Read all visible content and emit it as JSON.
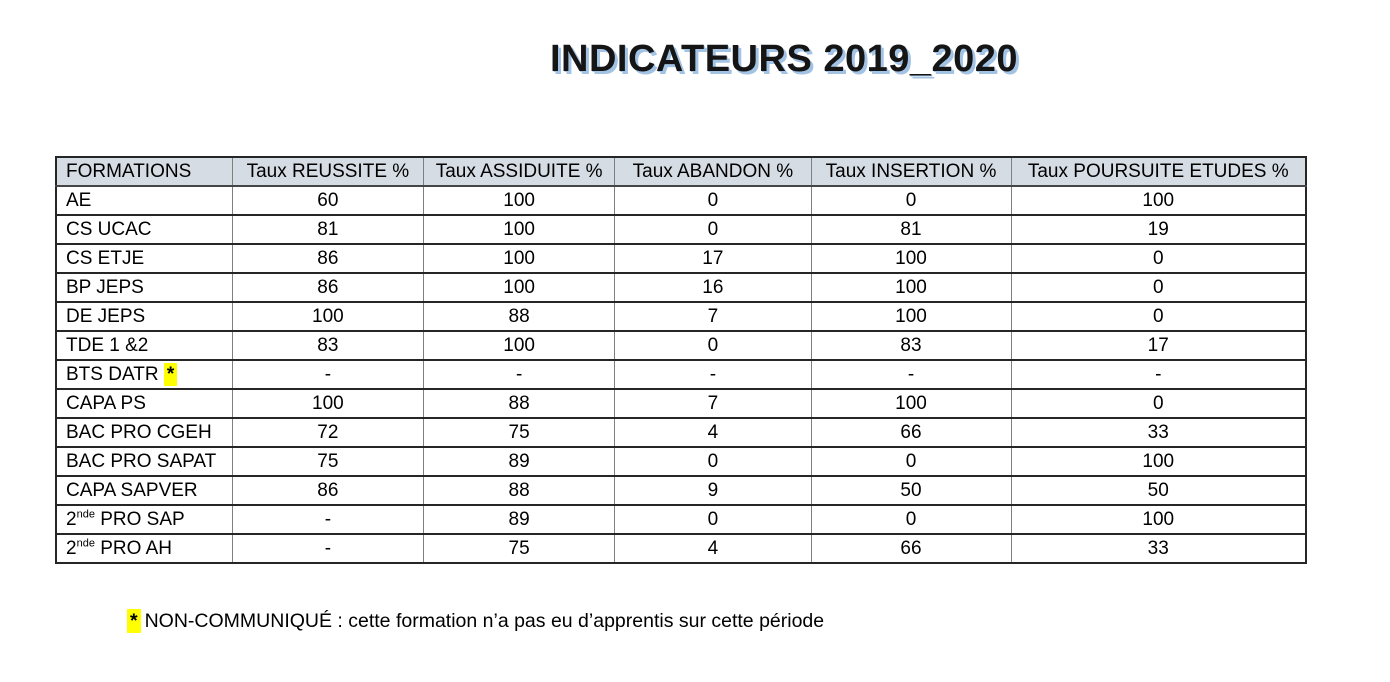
{
  "title": "INDICATEURS 2019_2020",
  "colors": {
    "header_bg": "#d6dce4",
    "highlight": "#ffff00",
    "title_color": "#151515",
    "title_shadow": "#a3c3e4"
  },
  "table": {
    "headers": [
      "FORMATIONS",
      "Taux REUSSITE %",
      "Taux ASSIDUITE %",
      "Taux ABANDON %",
      "Taux INSERTION %",
      "Taux POURSUITE ETUDES %"
    ],
    "col_widths_pct": [
      14.1,
      15.3,
      15.3,
      15.7,
      16.0,
      23.6
    ],
    "rows": [
      {
        "name": "AE",
        "name_sup": "",
        "name_rest": "",
        "marker": "",
        "values": [
          "60",
          "100",
          "0",
          "0",
          "100"
        ]
      },
      {
        "name": "CS UCAC",
        "name_sup": "",
        "name_rest": "",
        "marker": "",
        "values": [
          "81",
          "100",
          "0",
          "81",
          "19"
        ]
      },
      {
        "name": "CS ETJE",
        "name_sup": "",
        "name_rest": "",
        "marker": "",
        "values": [
          "86",
          "100",
          "17",
          "100",
          "0"
        ]
      },
      {
        "name": "BP JEPS",
        "name_sup": "",
        "name_rest": "",
        "marker": "",
        "values": [
          "86",
          "100",
          "16",
          "100",
          "0"
        ]
      },
      {
        "name": "DE JEPS",
        "name_sup": "",
        "name_rest": "",
        "marker": "",
        "values": [
          "100",
          "88",
          "7",
          "100",
          "0"
        ]
      },
      {
        "name": "TDE 1 &2",
        "name_sup": "",
        "name_rest": "",
        "marker": "",
        "values": [
          "83",
          "100",
          "0",
          "83",
          "17"
        ]
      },
      {
        "name": "BTS DATR",
        "name_sup": "",
        "name_rest": "",
        "marker": "*",
        "values": [
          "-",
          "-",
          "-",
          "-",
          "-"
        ]
      },
      {
        "name": "CAPA PS",
        "name_sup": "",
        "name_rest": "",
        "marker": "",
        "values": [
          "100",
          "88",
          "7",
          "100",
          "0"
        ]
      },
      {
        "name": "BAC PRO CGEH",
        "name_sup": "",
        "name_rest": "",
        "marker": "",
        "values": [
          "72",
          "75",
          "4",
          "66",
          "33"
        ]
      },
      {
        "name": "BAC PRO SAPAT",
        "name_sup": "",
        "name_rest": "",
        "marker": "",
        "values": [
          "75",
          "89",
          "0",
          "0",
          "100"
        ]
      },
      {
        "name": "CAPA SAPVER",
        "name_sup": "",
        "name_rest": "",
        "marker": "",
        "values": [
          "86",
          "88",
          "9",
          "50",
          "50"
        ]
      },
      {
        "name": "2",
        "name_sup": "nde",
        "name_rest": " PRO SAP",
        "marker": "",
        "values": [
          "-",
          "89",
          "0",
          "0",
          "100"
        ]
      },
      {
        "name": "2",
        "name_sup": "nde",
        "name_rest": " PRO AH",
        "marker": "",
        "values": [
          "-",
          "75",
          "4",
          "66",
          "33"
        ]
      }
    ]
  },
  "footnote": {
    "marker": "*",
    "text": "NON-COMMUNIQUÉ : cette formation n’a pas eu d’apprentis sur cette période"
  }
}
